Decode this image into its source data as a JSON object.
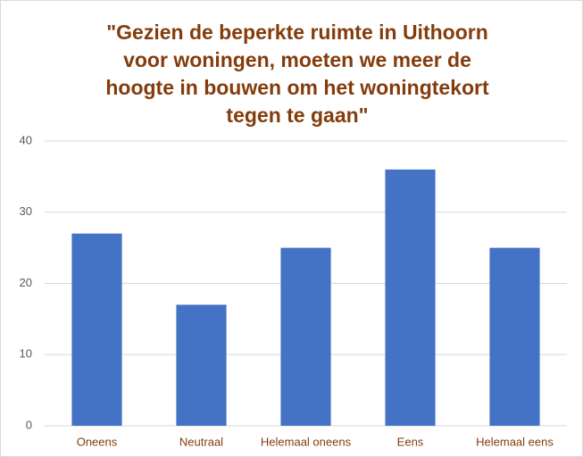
{
  "chart_data": {
    "type": "bar",
    "title": [
      "\"Gezien de beperkte ruimte in Uithoorn",
      "voor woningen, moeten we meer de",
      "hoogte in bouwen om het woningtekort",
      "tegen te gaan\""
    ],
    "categories": [
      "Oneens",
      "Neutraal",
      "Helemaal oneens",
      "Eens",
      "Helemaal eens"
    ],
    "values": [
      27,
      17,
      25,
      36,
      25
    ],
    "color": "#4472c4",
    "ylim": [
      0,
      40
    ],
    "yticks": [
      0,
      10,
      20,
      30,
      40
    ],
    "grid": true
  }
}
